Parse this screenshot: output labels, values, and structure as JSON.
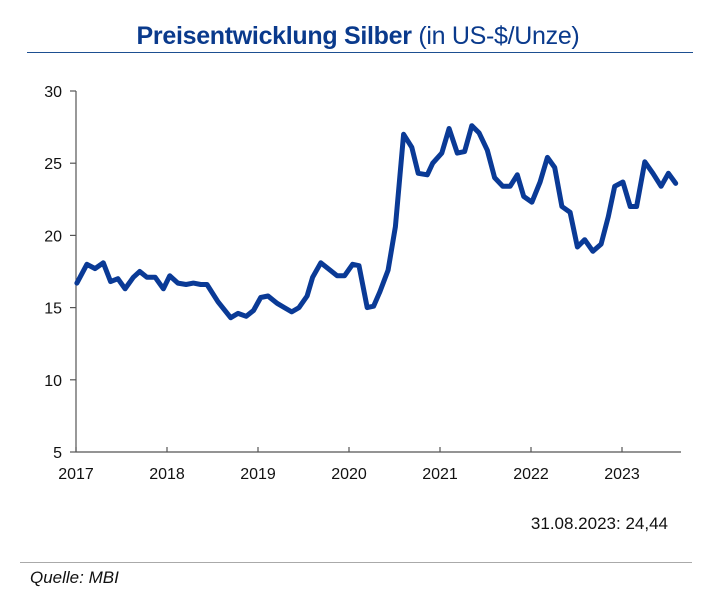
{
  "chart_data": {
    "type": "line",
    "title": "Preisentwicklung Silber",
    "subtitle": "(in US-$/Unze)",
    "xlabel": "",
    "ylabel": "",
    "xlim": [
      2017,
      2023.67
    ],
    "ylim": [
      5,
      30
    ],
    "x_ticks": [
      "2017",
      "2018",
      "2019",
      "2020",
      "2021",
      "2022",
      "2023"
    ],
    "y_ticks": [
      "30",
      "25",
      "20",
      "15",
      "10",
      "5"
    ],
    "grid": false,
    "line_color": "#0a3a96",
    "annotation": "31.08.2023: 24,44",
    "x": [
      2017.01,
      2017.12,
      2017.21,
      2017.3,
      2017.38,
      2017.46,
      2017.54,
      2017.63,
      2017.7,
      2017.78,
      2017.87,
      2017.96,
      2018.03,
      2018.12,
      2018.21,
      2018.29,
      2018.37,
      2018.44,
      2018.56,
      2018.7,
      2018.78,
      2018.87,
      2018.95,
      2019.03,
      2019.11,
      2019.21,
      2019.29,
      2019.37,
      2019.45,
      2019.54,
      2019.6,
      2019.69,
      2019.77,
      2019.87,
      2019.95,
      2020.04,
      2020.11,
      2020.2,
      2020.27,
      2020.34,
      2020.43,
      2020.51,
      2020.6,
      2020.69,
      2020.76,
      2020.86,
      2020.92,
      2021.02,
      2021.1,
      2021.19,
      2021.27,
      2021.35,
      2021.43,
      2021.52,
      2021.6,
      2021.69,
      2021.77,
      2021.85,
      2021.92,
      2022.01,
      2022.1,
      2022.18,
      2022.26,
      2022.34,
      2022.43,
      2022.51,
      2022.59,
      2022.68,
      2022.77,
      2022.85,
      2022.92,
      2023.01,
      2023.09,
      2023.16,
      2023.25,
      2023.34,
      2023.43,
      2023.51,
      2023.59
    ],
    "values": [
      16.7,
      18.0,
      17.7,
      18.1,
      16.8,
      17.0,
      16.3,
      17.1,
      17.5,
      17.1,
      17.1,
      16.3,
      17.2,
      16.7,
      16.6,
      16.7,
      16.6,
      16.6,
      15.4,
      14.3,
      14.6,
      14.4,
      14.8,
      15.7,
      15.8,
      15.3,
      15.0,
      14.7,
      15.0,
      15.8,
      17.1,
      18.1,
      17.7,
      17.2,
      17.2,
      18.0,
      17.9,
      15.0,
      15.1,
      16.1,
      17.6,
      20.6,
      27.0,
      26.1,
      24.3,
      24.2,
      25.0,
      25.7,
      27.4,
      25.7,
      25.8,
      27.6,
      27.1,
      25.9,
      24.0,
      23.4,
      23.4,
      24.2,
      22.7,
      22.3,
      23.7,
      25.4,
      24.7,
      22.0,
      21.6,
      19.2,
      19.7,
      18.9,
      19.4,
      21.3,
      23.4,
      23.7,
      22.0,
      22.0,
      25.1,
      24.3,
      23.4,
      24.3,
      23.6
    ]
  },
  "footer": {
    "source": "Quelle: MBI"
  }
}
